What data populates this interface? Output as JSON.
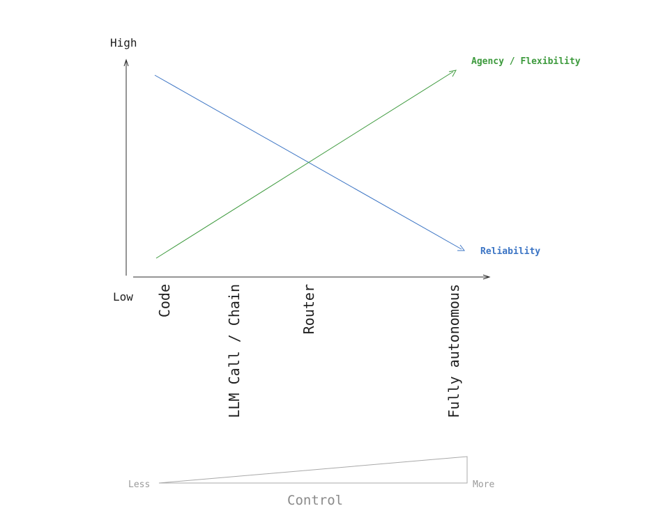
{
  "axis": {
    "high_label": "High",
    "low_label": "Low"
  },
  "stages": [
    "Code",
    "LLM Call / Chain",
    "Router",
    "Fully autonomous"
  ],
  "lines": {
    "agency": {
      "label": "Agency / Flexibility",
      "color": "#3d9a3d",
      "direction": "increasing"
    },
    "reliability": {
      "label": "Reliability",
      "color": "#3b74c4",
      "direction": "decreasing"
    }
  },
  "control_scale": {
    "title": "Control",
    "less_label": "Less",
    "more_label": "More",
    "color": "#a8a8a8"
  }
}
